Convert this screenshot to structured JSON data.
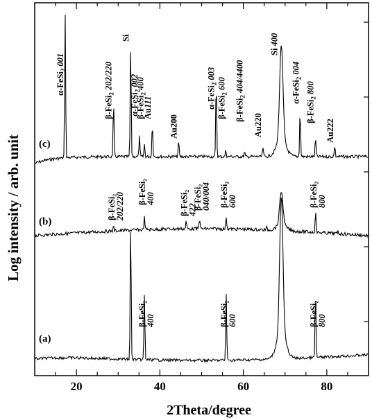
{
  "chart_data": {
    "type": "line",
    "xlabel": "2Theta/degree",
    "ylabel": "Log intensity / arb. unit",
    "xlim": [
      10,
      90
    ],
    "x_scale": "linear",
    "y_scale": "log",
    "grid": false,
    "legend": "none",
    "x_ticks": [
      20,
      40,
      60,
      80
    ],
    "series": [
      {
        "name": "(c)",
        "peaks": [
          {
            "x": 17.3,
            "height": 0.95
          },
          {
            "x": 28.9,
            "height": 0.35
          },
          {
            "x": 33.0,
            "height": 0.74
          },
          {
            "x": 35.1,
            "height": 0.13
          },
          {
            "x": 36.3,
            "height": 0.08
          },
          {
            "x": 38.2,
            "height": 0.22
          },
          {
            "x": 44.5,
            "height": 0.1
          },
          {
            "x": 53.5,
            "height": 0.5
          },
          {
            "x": 55.8,
            "height": 0.04
          },
          {
            "x": 60.3,
            "height": 0.03
          },
          {
            "x": 64.7,
            "height": 0.06
          },
          {
            "x": 69.1,
            "height": 0.62
          },
          {
            "x": 73.6,
            "height": 0.3
          },
          {
            "x": 77.3,
            "height": 0.12
          },
          {
            "x": 81.9,
            "height": 0.07
          }
        ]
      },
      {
        "name": "(b)",
        "peaks": [
          {
            "x": 28.9,
            "height": 0.05
          },
          {
            "x": 36.3,
            "height": 0.15
          },
          {
            "x": 46.3,
            "height": 0.09
          },
          {
            "x": 49.5,
            "height": 0.13
          },
          {
            "x": 55.9,
            "height": 0.15
          },
          {
            "x": 65.6,
            "height": 0.03
          },
          {
            "x": 69.1,
            "height": 0.4
          },
          {
            "x": 77.3,
            "height": 0.25
          },
          {
            "x": 82.7,
            "height": 0.03
          }
        ]
      },
      {
        "name": "(a)",
        "peaks": [
          {
            "x": 33.0,
            "height": 0.95
          },
          {
            "x": 36.3,
            "height": 0.45
          },
          {
            "x": 55.9,
            "height": 0.45
          },
          {
            "x": 69.1,
            "height": 0.95
          },
          {
            "x": 77.3,
            "height": 0.45
          }
        ]
      }
    ],
    "annotations": [
      {
        "series": "(c)",
        "x": 17.3,
        "parts": [
          [
            "α-FeSi",
            ""
          ],
          [
            "2",
            "sub"
          ],
          [
            " 001",
            "it"
          ]
        ]
      },
      {
        "series": "(c)",
        "x": 28.9,
        "parts": [
          [
            "β-FeSi",
            ""
          ],
          [
            "2",
            "sub"
          ],
          [
            " 202/220",
            "it"
          ]
        ]
      },
      {
        "series": "(c)",
        "x": 33.0,
        "parts": [
          [
            "Si",
            ""
          ]
        ]
      },
      {
        "series": "(c)",
        "x": 35.1,
        "parts": [
          [
            "α-FeSi",
            ""
          ],
          [
            "2",
            "sub"
          ],
          [
            " 002",
            "it"
          ]
        ]
      },
      {
        "series": "(c)",
        "x": 36.5,
        "parts": [
          [
            "β-FeSi",
            ""
          ],
          [
            "2",
            "sub"
          ],
          [
            " 400",
            "it"
          ]
        ]
      },
      {
        "series": "(c)",
        "x": 38.3,
        "parts": [
          [
            "Au",
            ""
          ],
          [
            "111",
            "it"
          ]
        ]
      },
      {
        "series": "(c)",
        "x": 44.5,
        "parts": [
          [
            "Au200",
            ""
          ]
        ]
      },
      {
        "series": "(c)",
        "x": 53.5,
        "parts": [
          [
            "α-FeSi",
            ""
          ],
          [
            "2",
            "sub"
          ],
          [
            " 003",
            "it"
          ]
        ]
      },
      {
        "series": "(c)",
        "x": 56.0,
        "parts": [
          [
            "β-FeSi",
            ""
          ],
          [
            "2",
            "sub"
          ],
          [
            " 600",
            "it"
          ]
        ]
      },
      {
        "series": "(c)",
        "x": 60.3,
        "parts": [
          [
            "β-FeSi",
            ""
          ],
          [
            "2",
            "sub"
          ],
          [
            " 404/4400",
            "it"
          ]
        ]
      },
      {
        "series": "(c)",
        "x": 64.7,
        "parts": [
          [
            "Au220",
            ""
          ]
        ]
      },
      {
        "series": "(c)",
        "x": 68.6,
        "parts": [
          [
            "Si ",
            ""
          ],
          [
            "400",
            "it"
          ]
        ]
      },
      {
        "series": "(c)",
        "x": 73.8,
        "parts": [
          [
            "α-FeSi",
            ""
          ],
          [
            "2",
            "sub"
          ],
          [
            " 004",
            "it"
          ]
        ]
      },
      {
        "series": "(c)",
        "x": 77.3,
        "parts": [
          [
            "β-FeSi",
            ""
          ],
          [
            "2",
            "sub"
          ],
          [
            " 800",
            "it"
          ]
        ]
      },
      {
        "series": "(c)",
        "x": 82.0,
        "parts": [
          [
            "Au222",
            ""
          ]
        ]
      },
      {
        "series": "(b)",
        "x": 29.0,
        "lines": [
          "β-FeSi₂",
          "202/220"
        ]
      },
      {
        "series": "(b)",
        "x": 36.3,
        "lines": [
          "β-FeSi₂",
          "400"
        ]
      },
      {
        "series": "(b)",
        "x": 46.3,
        "lines": [
          "β-FeSi₂",
          "422"
        ]
      },
      {
        "series": "(b)",
        "x": 49.6,
        "lines": [
          "β-FeSi₂",
          "040/004"
        ]
      },
      {
        "series": "(b)",
        "x": 55.9,
        "lines": [
          "β-FeSi₂",
          "600"
        ]
      },
      {
        "series": "(b)",
        "x": 77.4,
        "lines": [
          "β-FeSi₂",
          "800"
        ]
      },
      {
        "series": "(a)",
        "x": 36.3,
        "lines": [
          "β-FeSi₂",
          "400"
        ]
      },
      {
        "series": "(a)",
        "x": 55.9,
        "lines": [
          "β-FeSi₂",
          "600"
        ]
      },
      {
        "series": "(a)",
        "x": 77.4,
        "lines": [
          "β-FeSi₂",
          "800"
        ]
      }
    ]
  }
}
